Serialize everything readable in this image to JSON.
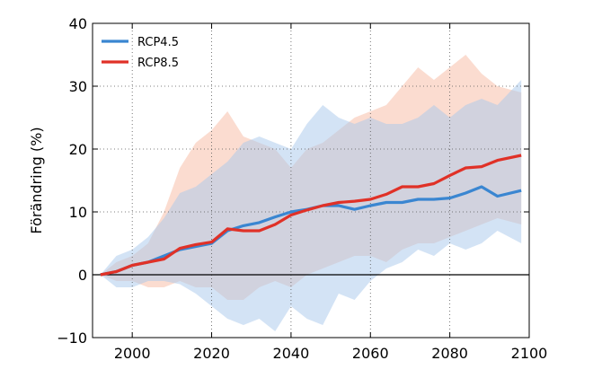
{
  "chart_data": {
    "type": "line",
    "ylabel": "Förändring (%)",
    "xlabel": "",
    "xlim": [
      1990,
      2100
    ],
    "ylim": [
      -10,
      40
    ],
    "x_ticks": [
      "2000",
      "2020",
      "2040",
      "2060",
      "2080",
      "2100"
    ],
    "y_ticks": [
      "−10",
      "0",
      "10",
      "20",
      "30",
      "40"
    ],
    "grid": true,
    "legend_position": "top-left",
    "x": [
      1992,
      1996,
      2000,
      2004,
      2008,
      2012,
      2016,
      2020,
      2024,
      2028,
      2032,
      2036,
      2040,
      2044,
      2048,
      2052,
      2056,
      2060,
      2064,
      2068,
      2072,
      2076,
      2080,
      2084,
      2088,
      2092,
      2098
    ],
    "series": [
      {
        "name": "RCP4.5",
        "color": "#3a86d1",
        "band_color": "#a8c8eb",
        "values": [
          0,
          0.5,
          1.5,
          2.0,
          3.0,
          4.0,
          4.5,
          5.0,
          7.0,
          7.8,
          8.3,
          9.2,
          10.0,
          10.4,
          11.0,
          11.0,
          10.4,
          11.0,
          11.5,
          11.5,
          12.0,
          12.0,
          12.2,
          13.0,
          14.0,
          12.5,
          13.4
        ],
        "lower": [
          0,
          -2,
          -2,
          -1,
          -1,
          -1.5,
          -3,
          -5,
          -7,
          -8,
          -7,
          -9,
          -5,
          -7,
          -8,
          -3,
          -4,
          -1,
          1,
          2,
          4,
          3,
          5,
          4,
          5,
          7,
          5
        ],
        "upper": [
          0,
          3,
          4,
          6,
          9,
          13,
          14,
          16,
          18,
          21,
          22,
          21,
          20,
          24,
          27,
          25,
          24,
          25,
          24,
          24,
          25,
          27,
          25,
          27,
          28,
          27,
          31
        ]
      },
      {
        "name": "RCP8.5",
        "color": "#e03127",
        "band_color": "#f7b9a2",
        "values": [
          0,
          0.5,
          1.5,
          2.0,
          2.5,
          4.2,
          4.8,
          5.2,
          7.3,
          7.0,
          7.0,
          8.0,
          9.5,
          10.3,
          11.0,
          11.5,
          11.7,
          12.0,
          12.8,
          14.0,
          14.0,
          14.5,
          15.8,
          17.0,
          17.2,
          18.2,
          19.0
        ],
        "lower": [
          0,
          -1,
          -1,
          -2,
          -2,
          -1,
          -2,
          -2,
          -4,
          -4,
          -2,
          -1,
          -2,
          0,
          1,
          2,
          3,
          3,
          2,
          4,
          5,
          5,
          6,
          7,
          8,
          9,
          8
        ],
        "upper": [
          0,
          2,
          3,
          5,
          10,
          17,
          21,
          23,
          26,
          22,
          21,
          20,
          17,
          20,
          21,
          23,
          25,
          26,
          27,
          30,
          33,
          31,
          33,
          35,
          32,
          30,
          29
        ]
      }
    ]
  }
}
